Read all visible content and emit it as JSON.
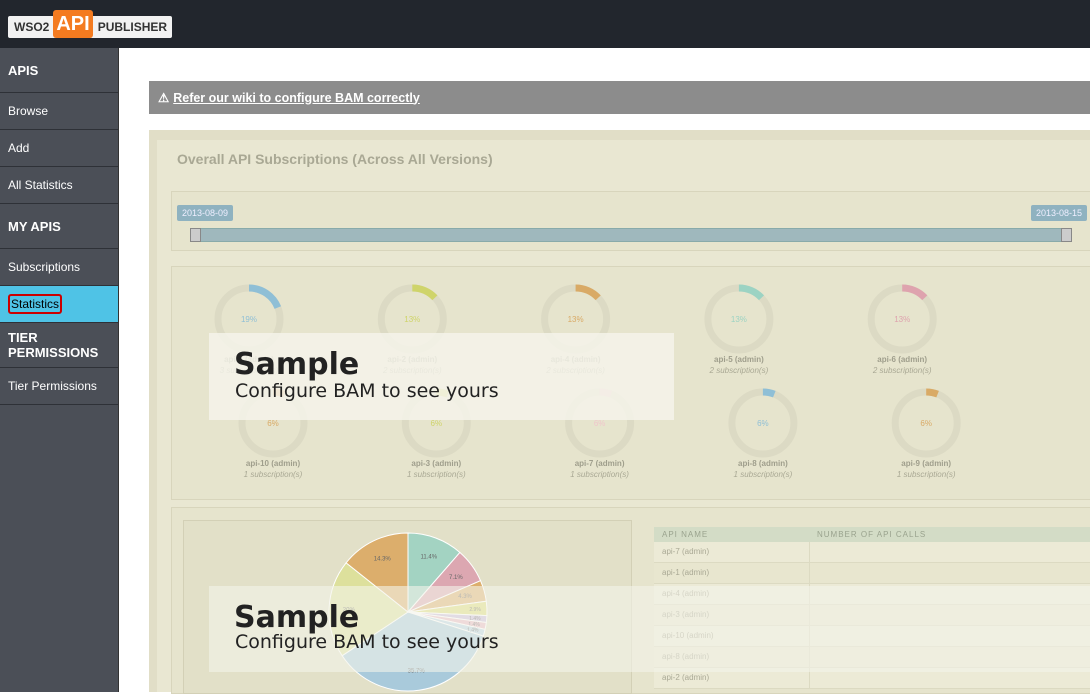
{
  "header": {
    "logo_wso2": "WSO2",
    "logo_api": "API",
    "logo_publisher": "PUBLISHER"
  },
  "sidebar": {
    "items": [
      {
        "text": "APIS",
        "kind": "heading"
      },
      {
        "text": "Browse",
        "kind": "link"
      },
      {
        "text": "Add",
        "kind": "link"
      },
      {
        "text": "All Statistics",
        "kind": "link"
      },
      {
        "text": "MY APIS",
        "kind": "heading"
      },
      {
        "text": "Subscriptions",
        "kind": "link"
      },
      {
        "text": "Statistics",
        "kind": "active"
      },
      {
        "text": "TIER PERMISSIONS",
        "kind": "heading"
      },
      {
        "text": "Tier Permissions",
        "kind": "link"
      }
    ]
  },
  "warning": {
    "icon": "⚠",
    "link": "Refer our wiki to configure BAM correctly"
  },
  "panel": {
    "title": "Overall API Subscriptions (Across All Versions)",
    "slider": {
      "start": "2013-08-09",
      "end": "2013-08-15"
    },
    "donuts": [
      {
        "name": "api-1 (admin)",
        "subs": "3 subscription(s)",
        "percent": 19,
        "percent_label": "19%",
        "color": "#8fbfd6"
      },
      {
        "name": "api-2 (admin)",
        "subs": "2 subscription(s)",
        "percent": 13,
        "percent_label": "13%",
        "color": "#cfd46a"
      },
      {
        "name": "api-4 (admin)",
        "subs": "2 subscription(s)",
        "percent": 13,
        "percent_label": "13%",
        "color": "#d9aa66"
      },
      {
        "name": "api-5 (admin)",
        "subs": "2 subscription(s)",
        "percent": 13,
        "percent_label": "13%",
        "color": "#9cd3c3"
      },
      {
        "name": "api-6 (admin)",
        "subs": "2 subscription(s)",
        "percent": 13,
        "percent_label": "13%",
        "color": "#dea3ae"
      },
      {
        "name": "api-10 (admin)",
        "subs": "1 subscription(s)",
        "percent": 6,
        "percent_label": "6%",
        "color": "#d9aa66"
      },
      {
        "name": "api-3 (admin)",
        "subs": "1 subscription(s)",
        "percent": 6,
        "percent_label": "6%",
        "color": "#cfd46a"
      },
      {
        "name": "api-7 (admin)",
        "subs": "1 subscription(s)",
        "percent": 6,
        "percent_label": "6%",
        "color": "#f0c6cc"
      },
      {
        "name": "api-8 (admin)",
        "subs": "1 subscription(s)",
        "percent": 6,
        "percent_label": "6%",
        "color": "#8fbfd6"
      },
      {
        "name": "api-9 (admin)",
        "subs": "1 subscription(s)",
        "percent": 6,
        "percent_label": "6%",
        "color": "#d9aa66"
      }
    ],
    "pie": {
      "values": [
        11.4,
        7.1,
        4.3,
        2.9,
        1.4,
        1.4,
        1.4,
        35.7,
        20,
        14.3
      ],
      "value_labels": [
        "11.4%",
        "7.1%",
        "4.3%",
        "2.9%",
        "1.4%",
        "1.4%",
        "1.4%",
        "35.7%",
        "20%",
        "14.3%"
      ],
      "colors": [
        "#a3d3c2",
        "#dca7b1",
        "#dcae6c",
        "#dcdb78",
        "#c9b8dc",
        "#e9b7c4",
        "#b9d4e6",
        "#a9cadb",
        "#dde09c",
        "#dcae6c"
      ]
    },
    "table": {
      "headers": [
        "API NAME",
        "NUMBER OF API CALLS"
      ],
      "rows": [
        "api-7 (admin)",
        "api-1 (admin)",
        "api-4 (admin)",
        "api-3 (admin)",
        "api-10 (admin)",
        "api-8 (admin)",
        "api-2 (admin)"
      ]
    },
    "overlay": {
      "title": "Sample",
      "text": "Configure BAM to see yours"
    }
  }
}
